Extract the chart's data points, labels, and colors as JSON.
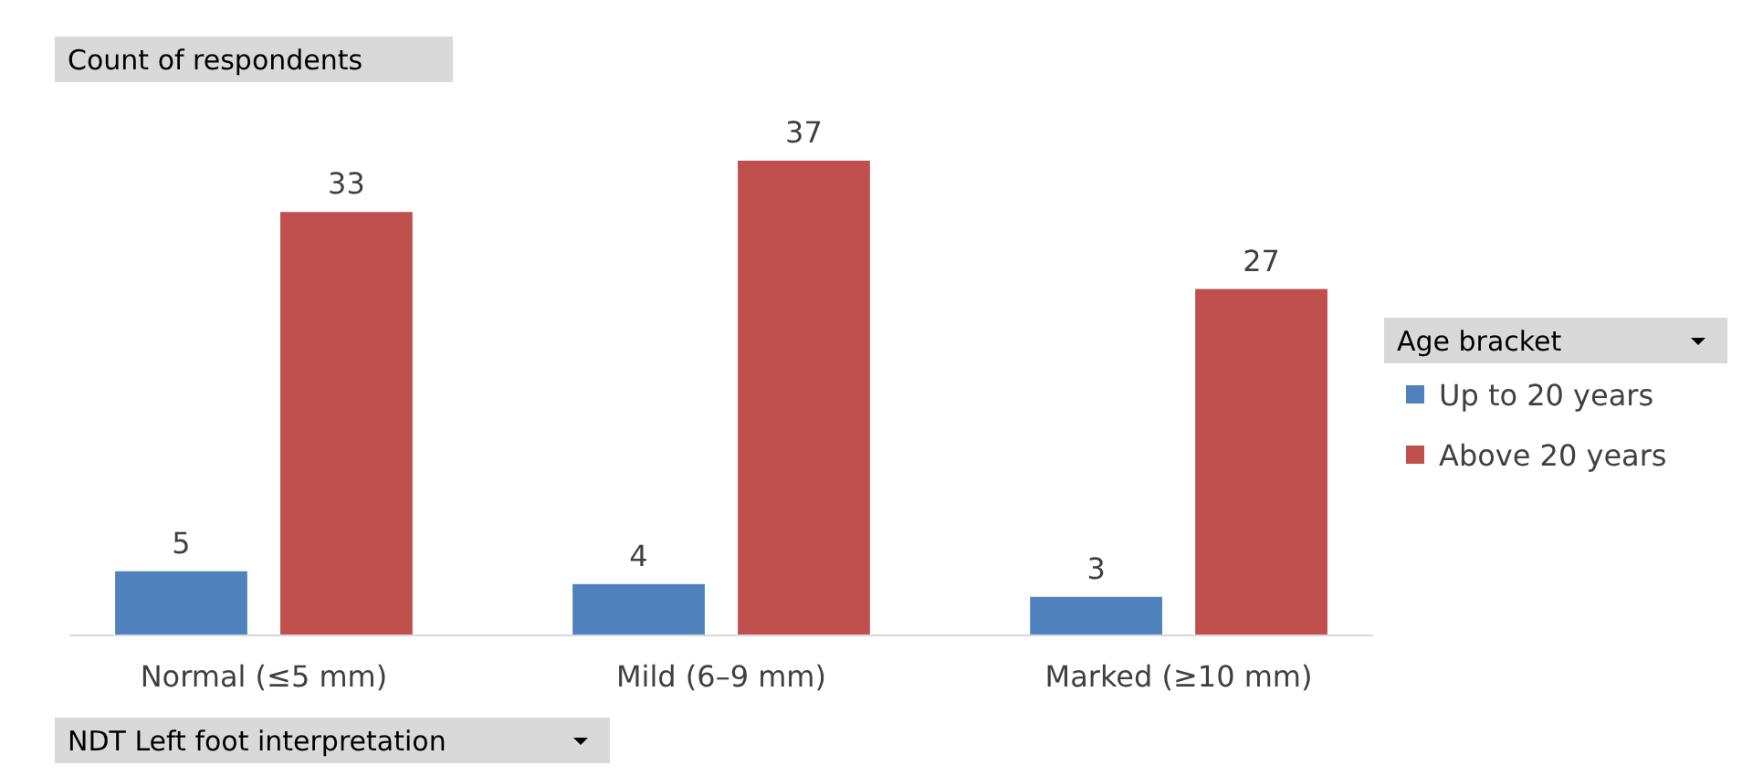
{
  "chart_data": {
    "type": "bar",
    "ylabel": "Count of respondents",
    "xlabel": "NDT Left foot interpretation",
    "legend_title": "Age bracket",
    "categories": [
      "Normal (≤5 mm)",
      "Mild (6–9 mm)",
      "Marked (≥10 mm)"
    ],
    "series": [
      {
        "name": "Up to 20 years",
        "color": "#4f81bd",
        "values": [
          5,
          4,
          3
        ]
      },
      {
        "name": "Above 20 years",
        "color": "#c0504d",
        "values": [
          33,
          37,
          27
        ]
      }
    ],
    "data_labels": true,
    "legend": "right",
    "grid": false
  }
}
